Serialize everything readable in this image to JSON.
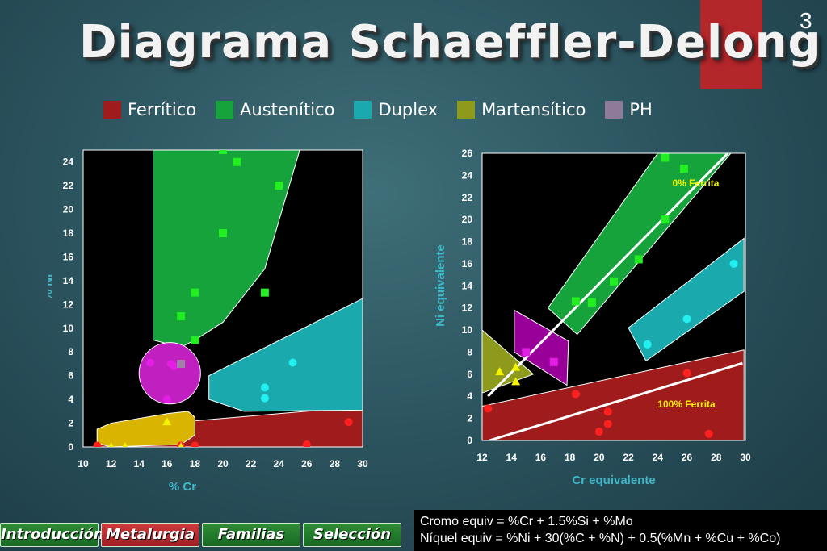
{
  "slide": {
    "title": "Diagrama Schaeffler-Delong",
    "page_number": "3"
  },
  "legend": [
    {
      "label": "Ferrítico",
      "color": "#a01c1c"
    },
    {
      "label": "Austenítico",
      "color": "#16a33c"
    },
    {
      "label": "Duplex",
      "color": "#1aa9ad"
    },
    {
      "label": "Martensítico",
      "color": "#8d9a1c"
    },
    {
      "label": "PH",
      "color": "#8f7a9a"
    }
  ],
  "colors": {
    "ferritico": "#a01c1c",
    "austenitico": "#16a33c",
    "duplex": "#1aa9ad",
    "martensitico": "#8d9a1c",
    "ph": "#8f7a9a",
    "marker_red": "#ff2020",
    "marker_green": "#22ee22",
    "marker_cyan": "#22f0f0",
    "marker_yellow": "#f4f400",
    "marker_magenta": "#e51ee5",
    "axis_label": "#3fb8c8"
  },
  "chart_data": [
    {
      "type": "scatter",
      "xlabel": "% Cr",
      "ylabel": "% Ni",
      "xlim": [
        10,
        30
      ],
      "ylim": [
        0,
        25
      ],
      "x_ticks": [
        10,
        12,
        14,
        16,
        18,
        20,
        22,
        24,
        26,
        28,
        30
      ],
      "y_ticks": [
        0,
        2,
        4,
        6,
        8,
        10,
        12,
        14,
        16,
        18,
        20,
        22,
        24
      ],
      "regions": [
        {
          "name": "Ferrítico",
          "color": "#a01c1c",
          "points": [
            [
              11,
              1.5
            ],
            [
              30,
              3.4
            ],
            [
              30,
              0
            ],
            [
              11,
              0
            ]
          ]
        },
        {
          "name": "Austenítico",
          "color": "#16a33c",
          "points": [
            [
              19.5,
              25
            ],
            [
              25.5,
              25
            ],
            [
              24.5,
              21
            ],
            [
              23,
              15
            ],
            [
              20,
              10.5
            ],
            [
              18,
              9
            ],
            [
              17,
              8.4
            ],
            [
              15,
              9
            ],
            [
              15,
              11
            ],
            [
              15,
              25
            ]
          ]
        },
        {
          "name": "Duplex",
          "color": "#1aa9ad",
          "points": [
            [
              19,
              6
            ],
            [
              30,
              12.5
            ],
            [
              30,
              3.1
            ],
            [
              21.5,
              3
            ],
            [
              19,
              4
            ],
            [
              19,
              5
            ]
          ]
        },
        {
          "name": "Martensítico",
          "color": "#d9b400",
          "points": [
            [
              11,
              1.5
            ],
            [
              12,
              2
            ],
            [
              16,
              2.8
            ],
            [
              17.5,
              3
            ],
            [
              18,
              2.5
            ],
            [
              18,
              1
            ],
            [
              17,
              0.2
            ],
            [
              12,
              0
            ],
            [
              11,
              0.3
            ]
          ]
        },
        {
          "name": "PH",
          "color": "#c020c0",
          "circle": {
            "cx": 16.2,
            "cy": 6.2,
            "r": 2.2
          }
        }
      ],
      "series": [
        {
          "name": "Ferrítico",
          "marker": "circle",
          "color": "#ff2020",
          "points": [
            [
              11,
              0.1
            ],
            [
              17,
              0.1
            ],
            [
              18,
              0.1
            ],
            [
              26,
              0.2
            ],
            [
              29,
              2.1
            ]
          ]
        },
        {
          "name": "Austenítico",
          "marker": "square",
          "color": "#22ee22",
          "points": [
            [
              20,
              25
            ],
            [
              21,
              24
            ],
            [
              24,
              22
            ],
            [
              20,
              18
            ],
            [
              18,
              13
            ],
            [
              23,
              13
            ],
            [
              17,
              11
            ],
            [
              18,
              9
            ]
          ]
        },
        {
          "name": "Duplex",
          "marker": "circle",
          "color": "#22f0f0",
          "points": [
            [
              25,
              7.1
            ],
            [
              23,
              5
            ],
            [
              23,
              4.1
            ]
          ]
        },
        {
          "name": "Martensítico",
          "marker": "triangle",
          "color": "#f4f400",
          "points": [
            [
              12,
              0
            ],
            [
              13,
              0
            ],
            [
              16,
              2.1
            ],
            [
              17,
              0
            ]
          ]
        },
        {
          "name": "PH",
          "marker": "circle",
          "color": "#e51ee5",
          "points": [
            [
              14.8,
              7.1
            ],
            [
              16.3,
              7
            ],
            [
              16.5,
              6.8
            ],
            [
              16,
              4
            ]
          ]
        },
        {
          "name": "PH (square)",
          "marker": "square",
          "color": "#a080a8",
          "points": [
            [
              17,
              7
            ]
          ]
        }
      ]
    },
    {
      "type": "scatter",
      "xlabel": "Cr equivalente",
      "ylabel": "Ni equivalente",
      "xlim": [
        12,
        30
      ],
      "ylim": [
        0,
        26
      ],
      "x_ticks": [
        12,
        14,
        16,
        18,
        20,
        22,
        24,
        26,
        28,
        30
      ],
      "y_ticks": [
        0,
        2,
        4,
        6,
        8,
        10,
        12,
        14,
        16,
        18,
        20,
        22,
        24,
        26
      ],
      "regions": [
        {
          "name": "Ferrítico",
          "color": "#a01c1c",
          "points": [
            [
              12,
              3.1
            ],
            [
              29.9,
              8.2
            ],
            [
              29.9,
              0
            ],
            [
              12,
              0
            ]
          ]
        },
        {
          "name": "Austenítico",
          "color": "#16a33c",
          "points": [
            [
              16.5,
              12
            ],
            [
              24,
              26
            ],
            [
              29,
              26
            ],
            [
              18.5,
              9.6
            ]
          ]
        },
        {
          "name": "Duplex",
          "color": "#1aa9ad",
          "points": [
            [
              22,
              10.2
            ],
            [
              29.9,
              18.3
            ],
            [
              29.9,
              13.5
            ],
            [
              23.2,
              7.2
            ]
          ]
        },
        {
          "name": "Martensítico",
          "color": "#8d9a1c",
          "points": [
            [
              12,
              10
            ],
            [
              15.5,
              6
            ],
            [
              12,
              4.3
            ]
          ]
        },
        {
          "name": "PH",
          "color": "#990099",
          "points": [
            [
              14.2,
              11.8
            ],
            [
              17.9,
              9
            ],
            [
              17.8,
              5
            ],
            [
              14.2,
              8
            ]
          ]
        }
      ],
      "lines": [
        {
          "name": "0% Ferrita",
          "label": "0% Ferrita",
          "from": [
            12.4,
            4
          ],
          "to": [
            28.8,
            26
          ]
        },
        {
          "name": "100% Ferrita",
          "label": "100% Ferrita",
          "from": [
            12.5,
            0
          ],
          "to": [
            29.8,
            7
          ]
        }
      ],
      "series": [
        {
          "name": "Ferrítico",
          "marker": "circle",
          "color": "#ff2020",
          "points": [
            [
              12.4,
              2.9
            ],
            [
              18.4,
              4.2
            ],
            [
              20.6,
              2.6
            ],
            [
              20.6,
              1.5
            ],
            [
              20,
              0.8
            ],
            [
              26,
              6.1
            ],
            [
              27.5,
              0.6
            ]
          ]
        },
        {
          "name": "Austenítico",
          "marker": "square",
          "color": "#22ee22",
          "points": [
            [
              18.4,
              12.6
            ],
            [
              19.5,
              12.5
            ],
            [
              21,
              14.4
            ],
            [
              22.7,
              16.4
            ],
            [
              24.5,
              20
            ],
            [
              24.5,
              25.6
            ],
            [
              25.8,
              24.6
            ]
          ]
        },
        {
          "name": "Duplex",
          "marker": "circle",
          "color": "#22f0f0",
          "points": [
            [
              23.3,
              8.7
            ],
            [
              26,
              11
            ],
            [
              29.2,
              16
            ]
          ]
        },
        {
          "name": "Martensítico",
          "marker": "triangle",
          "color": "#f4f400",
          "points": [
            [
              13.2,
              6.2
            ],
            [
              14.3,
              6.6
            ],
            [
              14.3,
              5.3
            ]
          ]
        },
        {
          "name": "PH",
          "marker": "square",
          "color": "#e51ee5",
          "points": [
            [
              15,
              8
            ],
            [
              16.9,
              7.1
            ]
          ]
        }
      ]
    }
  ],
  "formula": {
    "line1": "Cromo equiv = %Cr + 1.5%Si + %Mo",
    "line2": "Níquel equiv = %Ni + 30(%C + %N) + 0.5(%Mn + %Cu + %Co)"
  },
  "nav": [
    {
      "label": "Introducción",
      "active": false
    },
    {
      "label": "Metalurgia",
      "active": true
    },
    {
      "label": "Familias",
      "active": false
    },
    {
      "label": "Selección",
      "active": false
    }
  ]
}
